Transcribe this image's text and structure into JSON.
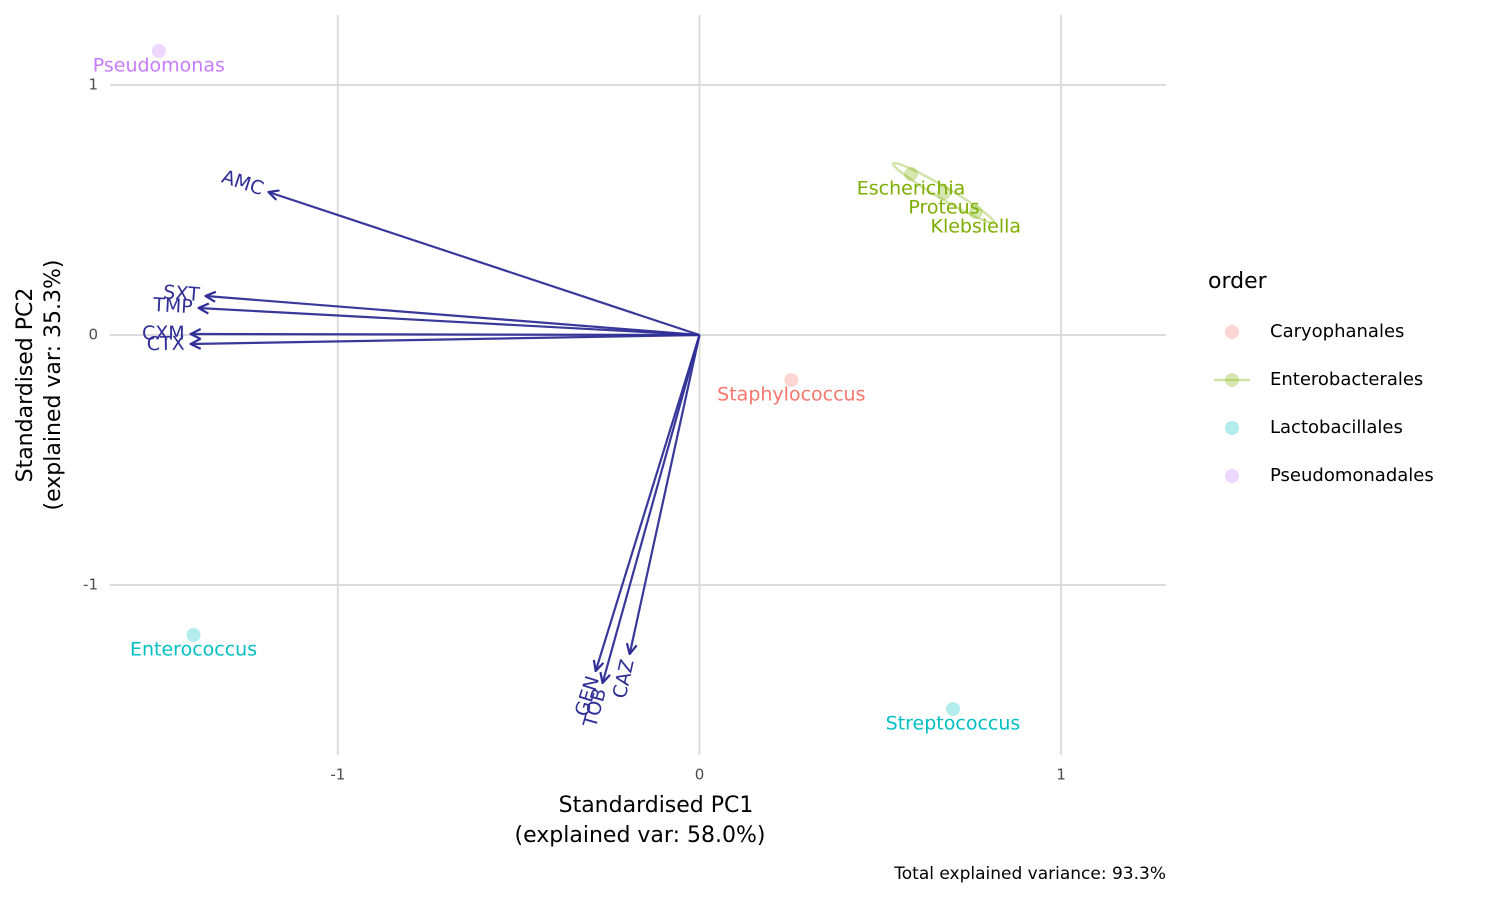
{
  "chart_data": {
    "type": "biplot",
    "x_label": [
      "Standardised PC1",
      "(explained var: 58.0%)"
    ],
    "y_label": [
      "Standardised PC2",
      "(explained var: 35.3%)"
    ],
    "caption": "Total explained variance: 93.3%",
    "legend_title": "order",
    "xlim": [
      -1.63,
      1.29
    ],
    "ylim": [
      -1.68,
      1.28
    ],
    "xticks": [
      -1,
      0,
      1
    ],
    "yticks": [
      -1,
      0,
      1
    ],
    "grid": true,
    "ellipse": true,
    "series": [
      {
        "name": "Caryophanales",
        "color": "#F8766D",
        "labels": [
          "Staphylococcus"
        ],
        "x": [
          0.254
        ],
        "y": [
          -0.18
        ]
      },
      {
        "name": "Enterobacterales",
        "color": "#7CAE00",
        "labels": [
          "Escherichia",
          "Klebsiella",
          "Proteus"
        ],
        "x": [
          0.585,
          0.764,
          0.676
        ],
        "y": [
          0.644,
          0.492,
          0.568
        ]
      },
      {
        "name": "Lactobacillales",
        "color": "#00BFC4",
        "labels": [
          "Enterococcus",
          "Streptococcus"
        ],
        "x": [
          -1.399,
          0.701
        ],
        "y": [
          -1.2,
          -1.496
        ]
      },
      {
        "name": "Pseudomonadales",
        "color": "#C77CFF",
        "labels": [
          "Pseudomonas"
        ],
        "x": [
          -1.495
        ],
        "y": [
          1.136
        ]
      }
    ],
    "loadings": {
      "color": "#2E2E96",
      "labels": [
        "AMC",
        "SXT",
        "TMP",
        "CXM",
        "CTX",
        "GEN",
        "TOB",
        "CAZ"
      ],
      "x": [
        -1.192,
        -1.366,
        -1.385,
        -1.407,
        -1.407,
        -0.287,
        -0.268,
        -0.193
      ],
      "y": [
        0.572,
        0.156,
        0.108,
        0.004,
        -0.036,
        -1.344,
        -1.392,
        -1.276
      ]
    }
  }
}
